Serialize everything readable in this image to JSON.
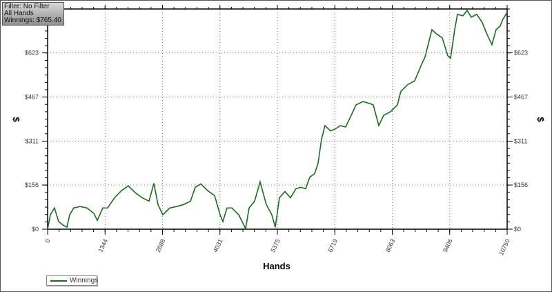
{
  "info": {
    "filter": "Filter: No Filter",
    "hands": "All Hands",
    "winnings": "Winnings: $765.40"
  },
  "chart_data": {
    "type": "line",
    "xlabel": "Hands",
    "ylabel": "$",
    "ylabel_right": "$",
    "xlim": [
      0,
      10750
    ],
    "ylim": [
      0,
      778
    ],
    "xticks": [
      "0",
      "1344",
      "2688",
      "4031",
      "5375",
      "6719",
      "8063",
      "9406",
      "10750"
    ],
    "xtick_values": [
      0,
      1344,
      2688,
      4031,
      5375,
      6719,
      8063,
      9406,
      10750
    ],
    "yticks": [
      "$0",
      "$156",
      "$311",
      "$467",
      "$623"
    ],
    "ytick_values": [
      0,
      156,
      311,
      467,
      623
    ],
    "grid": true,
    "legend_placement": "bottom-left",
    "series": [
      {
        "name": "Winnings",
        "color": "#1a6b1a",
        "x": [
          0,
          65,
          161,
          258,
          355,
          452,
          516,
          613,
          759,
          920,
          1081,
          1162,
          1291,
          1404,
          1566,
          1727,
          1888,
          2050,
          2211,
          2373,
          2486,
          2582,
          2695,
          2857,
          3018,
          3180,
          3341,
          3454,
          3583,
          3745,
          3906,
          4035,
          4100,
          4196,
          4309,
          4471,
          4632,
          4713,
          4842,
          4971,
          5116,
          5245,
          5326,
          5423,
          5552,
          5681,
          5810,
          5923,
          6036,
          6133,
          6246,
          6327,
          6407,
          6488,
          6617,
          6730,
          6843,
          6972,
          7101,
          7214,
          7376,
          7537,
          7618,
          7747,
          7860,
          8021,
          8183,
          8263,
          8425,
          8586,
          8748,
          8829,
          8990,
          9071,
          9232,
          9361,
          9426,
          9523,
          9587,
          9716,
          9813,
          9910,
          10039,
          10168,
          10265,
          10394,
          10491,
          10588,
          10652,
          10750
        ],
        "y": [
          0,
          51,
          75,
          27,
          15,
          7,
          51,
          75,
          80,
          75,
          56,
          31,
          75,
          75,
          111,
          136,
          153,
          129,
          111,
          99,
          162,
          87,
          51,
          75,
          80,
          87,
          99,
          148,
          160,
          136,
          119,
          51,
          27,
          75,
          75,
          51,
          2,
          75,
          99,
          167,
          87,
          51,
          7,
          111,
          133,
          111,
          143,
          148,
          143,
          184,
          196,
          233,
          317,
          366,
          347,
          354,
          366,
          361,
          402,
          439,
          451,
          444,
          439,
          366,
          402,
          415,
          439,
          487,
          511,
          524,
          582,
          608,
          705,
          693,
          676,
          613,
          604,
          705,
          759,
          754,
          773,
          749,
          759,
          730,
          693,
          652,
          705,
          718,
          742,
          765.4
        ]
      }
    ]
  }
}
